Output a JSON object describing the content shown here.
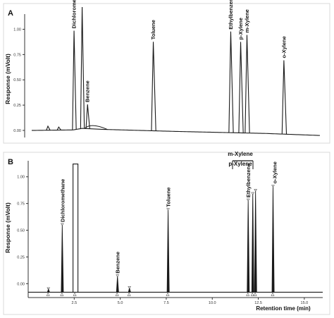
{
  "chart_data": [
    {
      "panel": "A",
      "type": "line",
      "ylabel": "Response (mVolt)",
      "xlabel": "",
      "ylim": [
        -0.07,
        1.15
      ],
      "yticks": [
        "0.00",
        "0.25",
        "0.50",
        "0.75",
        "1.00"
      ],
      "ytick_values": [
        0.0,
        0.25,
        0.5,
        0.75,
        1.0
      ],
      "baseline": {
        "x": [
          0.0,
          2.3,
          2.8,
          4.0,
          8.0,
          13.0,
          16.0
        ],
        "y": [
          0.0,
          0.005,
          0.02,
          0.01,
          -0.01,
          -0.03,
          -0.05
        ]
      },
      "peaks": [
        {
          "label": "",
          "x": 0.9,
          "height": 0.04
        },
        {
          "label": "",
          "x": 1.5,
          "height": 0.03
        },
        {
          "label": "Dichloromethane",
          "x": 2.35,
          "height": 0.98
        },
        {
          "label": "",
          "x": 2.8,
          "height": 1.2
        },
        {
          "label": "Benzene",
          "x": 3.1,
          "height": 0.24
        },
        {
          "label": "Toluene",
          "x": 6.75,
          "height": 0.88
        },
        {
          "label": "Ethylbenzene",
          "x": 11.05,
          "height": 1.0
        },
        {
          "label": "p-Xylene",
          "x": 11.6,
          "height": 0.9
        },
        {
          "label": "m-Xylene",
          "x": 11.95,
          "height": 0.97
        },
        {
          "label": "o-Xylene",
          "x": 14.0,
          "height": 0.73
        }
      ]
    },
    {
      "panel": "B",
      "type": "line",
      "ylabel": "Response (mVolt)",
      "xlabel": "Retention time (min)",
      "ylim": [
        -0.13,
        1.15
      ],
      "yticks": [
        "0.00",
        "0.25",
        "0.50",
        "0.75",
        "1.00"
      ],
      "ytick_values": [
        0.0,
        0.25,
        0.5,
        0.75,
        1.0
      ],
      "xticks": [
        "2.5",
        "5.0",
        "7.5",
        "10.0",
        "12.5",
        "15.0"
      ],
      "xtick_values": [
        2.5,
        5.0,
        7.5,
        10.0,
        12.5,
        15.0
      ],
      "xlim": [
        0.0,
        16.0
      ],
      "baseline_y": -0.08,
      "peaks": [
        {
          "label": "",
          "x": 1.1,
          "height": 0.03
        },
        {
          "label": "Dichloromethane",
          "x": 1.85,
          "height": 0.63
        },
        {
          "label": "",
          "x": 2.55,
          "height": 1.2
        },
        {
          "label": "Benzene",
          "x": 4.85,
          "height": 0.15
        },
        {
          "label": "",
          "x": 5.5,
          "height": 0.04
        },
        {
          "label": "Toluene",
          "x": 7.6,
          "height": 0.77
        },
        {
          "label": "Ethylbenzene",
          "x": 11.95,
          "height": 0.86
        },
        {
          "label": "",
          "x": 12.2,
          "height": 0.92
        },
        {
          "label": "",
          "x": 12.35,
          "height": 0.95
        },
        {
          "label": "o-Xylene",
          "x": 13.3,
          "height": 0.99
        }
      ],
      "bracket_labels": [
        "m-Xylene",
        "p-Xylene"
      ]
    }
  ]
}
